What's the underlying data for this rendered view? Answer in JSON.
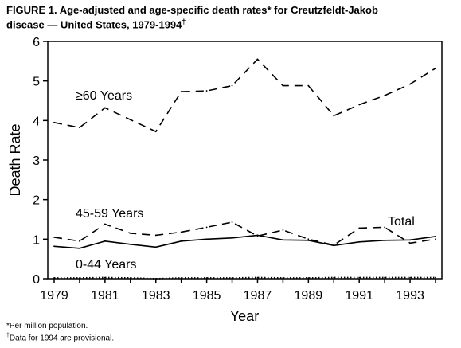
{
  "figure": {
    "title_line1": "FIGURE 1. Age-adjusted and age-specific death rates* for Creutzfeldt-Jakob",
    "title_line2": "disease — United States, 1979-1994",
    "title_dagger": "†"
  },
  "footnotes": {
    "note1": "*Per million population.",
    "note2_mark": "†",
    "note2": "Data for 1994 are provisional."
  },
  "chart_data": {
    "type": "line",
    "xlabel": "Year",
    "ylabel": "Death Rate",
    "xlim": [
      1979,
      1994
    ],
    "ylim": [
      0,
      6
    ],
    "xticks": [
      "1979",
      "1981",
      "1983",
      "1985",
      "1987",
      "1989",
      "1991",
      "1993"
    ],
    "yticks": [
      "0",
      "1",
      "2",
      "3",
      "4",
      "5",
      "6"
    ],
    "grid": false,
    "x": [
      1979,
      1980,
      1981,
      1982,
      1983,
      1984,
      1985,
      1986,
      1987,
      1988,
      1989,
      1990,
      1991,
      1992,
      1993,
      1994
    ],
    "series": [
      {
        "name": "≥60 Years",
        "style": "dashed",
        "values": [
          3.95,
          3.82,
          4.32,
          4.02,
          3.72,
          4.73,
          4.75,
          4.88,
          5.55,
          4.88,
          4.88,
          4.12,
          4.4,
          4.63,
          4.92,
          5.32
        ]
      },
      {
        "name": "45-59 Years",
        "style": "dashed",
        "values": [
          1.05,
          0.95,
          1.38,
          1.15,
          1.1,
          1.18,
          1.3,
          1.43,
          1.08,
          1.23,
          1.0,
          0.85,
          1.28,
          1.3,
          0.9,
          1.0
        ]
      },
      {
        "name": "Total",
        "style": "solid",
        "values": [
          0.82,
          0.77,
          0.95,
          0.87,
          0.8,
          0.95,
          1.0,
          1.03,
          1.1,
          0.98,
          0.97,
          0.84,
          0.93,
          0.97,
          0.98,
          1.07
        ]
      },
      {
        "name": "0-44 Years",
        "style": "dotted",
        "values": [
          0.02,
          0.02,
          0.03,
          0.02,
          0.0,
          0.02,
          0.02,
          0.02,
          0.03,
          0.02,
          0.02,
          0.03,
          0.03,
          0.03,
          0.03,
          0.03
        ]
      }
    ]
  }
}
